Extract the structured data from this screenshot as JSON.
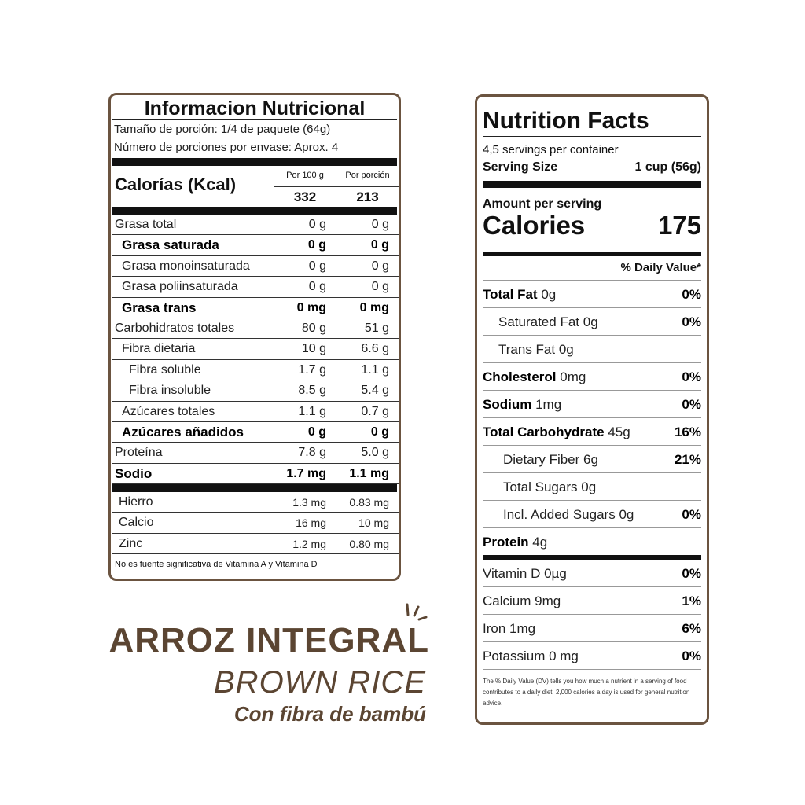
{
  "left_label": {
    "title": "Informacion Nutricional",
    "serving_size": "Tamaño de porción: 1/4 de paquete (64g)",
    "servings": "Número de porciones por envase: Aprox. 4",
    "calories_label": "Calorías (Kcal)",
    "col_100g": "Por 100 g",
    "col_portion": "Por porción",
    "cal_100g": "332",
    "cal_portion": "213",
    "rows": [
      {
        "label": "Grasa total",
        "v1": "0 g",
        "v2": "0 g",
        "bold": false,
        "indent": 0
      },
      {
        "label": "Grasa saturada",
        "v1": "0 g",
        "v2": "0 g",
        "bold": true,
        "indent": 1
      },
      {
        "label": "Grasa monoinsaturada",
        "v1": "0 g",
        "v2": "0 g",
        "bold": false,
        "indent": 1
      },
      {
        "label": "Grasa poliinsaturada",
        "v1": "0 g",
        "v2": "0 g",
        "bold": false,
        "indent": 1
      },
      {
        "label": "Grasa trans",
        "v1": "0 mg",
        "v2": "0 mg",
        "bold": true,
        "indent": 1
      },
      {
        "label": "Carbohidratos totales",
        "v1": "80 g",
        "v2": "51 g",
        "bold": false,
        "indent": 0
      },
      {
        "label": "Fibra dietaria",
        "v1": "10 g",
        "v2": "6.6 g",
        "bold": false,
        "indent": 1
      },
      {
        "label": "Fibra soluble",
        "v1": "1.7 g",
        "v2": "1.1 g",
        "bold": false,
        "indent": 2
      },
      {
        "label": "Fibra insoluble",
        "v1": "8.5 g",
        "v2": "5.4 g",
        "bold": false,
        "indent": 2
      },
      {
        "label": "Azúcares totales",
        "v1": "1.1 g",
        "v2": "0.7 g",
        "bold": false,
        "indent": 1
      },
      {
        "label": "Azúcares añadidos",
        "v1": "0 g",
        "v2": "0 g",
        "bold": true,
        "indent": 1
      },
      {
        "label": "Proteína",
        "v1": "7.8 g",
        "v2": "5.0 g",
        "bold": false,
        "indent": 0
      },
      {
        "label": "Sodio",
        "v1": "1.7 mg",
        "v2": "1.1 mg",
        "bold": true,
        "indent": 0
      }
    ],
    "minerals": [
      {
        "label": "Hierro",
        "v1": "1.3 mg",
        "v2": "0.83 mg"
      },
      {
        "label": "Calcio",
        "v1": "16 mg",
        "v2": "10 mg"
      },
      {
        "label": "Zinc",
        "v1": "1.2 mg",
        "v2": "0.80 mg"
      }
    ],
    "footnote": "No es fuente significativa de Vitamina A y Vitamina D"
  },
  "right_label": {
    "title": "Nutrition Facts",
    "servings": "4,5 servings  per container",
    "serving_size_label": "Serving Size",
    "serving_size": "1 cup (56g)",
    "amount_per": "Amount per serving",
    "calories_label": "Calories",
    "calories": "175",
    "dv_header": "% Daily Value*",
    "rows": [
      {
        "name": "Total Fat",
        "amt": "0g",
        "pct": "0%",
        "bold": true,
        "indent": 0
      },
      {
        "name": "Saturated Fat",
        "amt": "0g",
        "pct": "0%",
        "bold": false,
        "indent": 1
      },
      {
        "name": "Trans Fat",
        "amt": "0g",
        "pct": "",
        "bold": false,
        "indent": 1
      },
      {
        "name": "Cholesterol",
        "amt": "0mg",
        "pct": "0%",
        "bold": true,
        "indent": 0
      },
      {
        "name": "Sodium",
        "amt": "1mg",
        "pct": "0%",
        "bold": true,
        "indent": 0
      },
      {
        "name": "Total Carbohydrate",
        "amt": "45g",
        "pct": "16%",
        "bold": true,
        "indent": 0
      },
      {
        "name": "Dietary Fiber",
        "amt": "6g",
        "pct": "21%",
        "bold": false,
        "indent": 2
      },
      {
        "name": "Total Sugars",
        "amt": "0g",
        "pct": "",
        "bold": false,
        "indent": 2
      },
      {
        "name": "Incl. Added Sugars",
        "amt": "0g",
        "pct": "0%",
        "bold": false,
        "indent": 2
      },
      {
        "name": "Protein",
        "amt": "4g",
        "pct": "",
        "bold": true,
        "indent": 0
      }
    ],
    "vitamins": [
      {
        "name": "Vitamin D 0µg",
        "pct": "0%"
      },
      {
        "name": "Calcium 9mg",
        "pct": "1%"
      },
      {
        "name": "Iron 1mg",
        "pct": "6%"
      },
      {
        "name": "Potassium 0 mg",
        "pct": "0%"
      }
    ],
    "footnote": "The % Daily Value (DV) tells you how much a nutrient in a serving of food contributes to a daily diet. 2,000 calories a day is used for general nutrition advice."
  },
  "brand": {
    "name": "ARROZ INTEGRAL",
    "english": "BROWN RICE",
    "tagline": "Con fibra de bambú",
    "color": "#5b4532"
  },
  "border_color": "#6b5440"
}
